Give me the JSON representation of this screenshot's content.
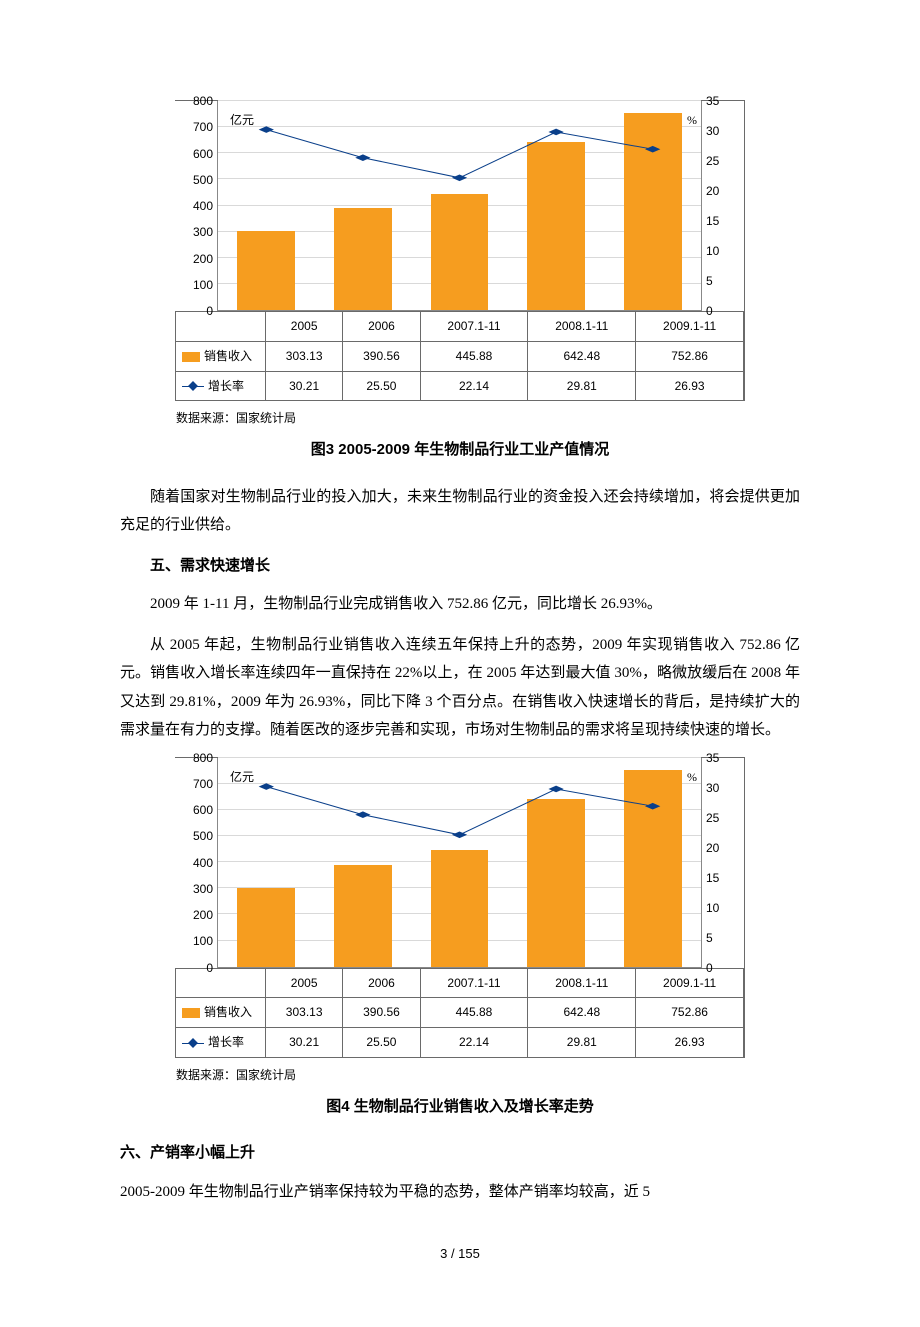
{
  "chart": {
    "type": "bar+line",
    "unit_left": "亿元",
    "unit_right": "%",
    "categories": [
      "2005",
      "2006",
      "2007.1-11",
      "2008.1-11",
      "2009.1-11"
    ],
    "bars": {
      "label": "销售收入",
      "values": [
        303.13,
        390.56,
        445.88,
        642.48,
        752.86
      ],
      "color": "#f69d1f"
    },
    "line": {
      "label": "增长率",
      "values": [
        30.21,
        25.5,
        22.14,
        29.81,
        26.93
      ],
      "color": "#0a3f8a",
      "marker": "diamond",
      "marker_size": 8,
      "stroke_width": 2
    },
    "y_left": {
      "min": 0,
      "max": 800,
      "step": 100
    },
    "y_right": {
      "min": 0,
      "max": 35,
      "step": 5
    },
    "grid_color": "#d9d9d9",
    "border_color": "#6a6a6a",
    "background_color": "#ffffff",
    "font_size_axis": 12
  },
  "chart1_source": "数据来源：国家统计局",
  "chart1_caption": "图3  2005-2009 年生物制品行业工业产值情况",
  "para1": "随着国家对生物制品行业的投入加大，未来生物制品行业的资金投入还会持续增加，将会提供更加充足的行业供给。",
  "heading5": "五、需求快速增长",
  "para2": "2009 年 1-11 月，生物制品行业完成销售收入 752.86 亿元，同比增长 26.93%。",
  "para3": "从 2005 年起，生物制品行业销售收入连续五年保持上升的态势，2009 年实现销售收入 752.86 亿元。销售收入增长率连续四年一直保持在 22%以上，在 2005 年达到最大值 30%，略微放缓后在 2008 年又达到 29.81%，2009 年为 26.93%，同比下降 3 个百分点。在销售收入快速增长的背后，是持续扩大的需求量在有力的支撑。随着医改的逐步完善和实现，市场对生物制品的需求将呈现持续快速的增长。",
  "chart2_source": "数据来源：国家统计局",
  "chart2_caption": "图4  生物制品行业销售收入及增长率走势",
  "heading6": "六、产销率小幅上升",
  "para4": "2005-2009 年生物制品行业产销率保持较为平稳的态势，整体产销率均较高，近 5",
  "page_number": "3  /  155"
}
